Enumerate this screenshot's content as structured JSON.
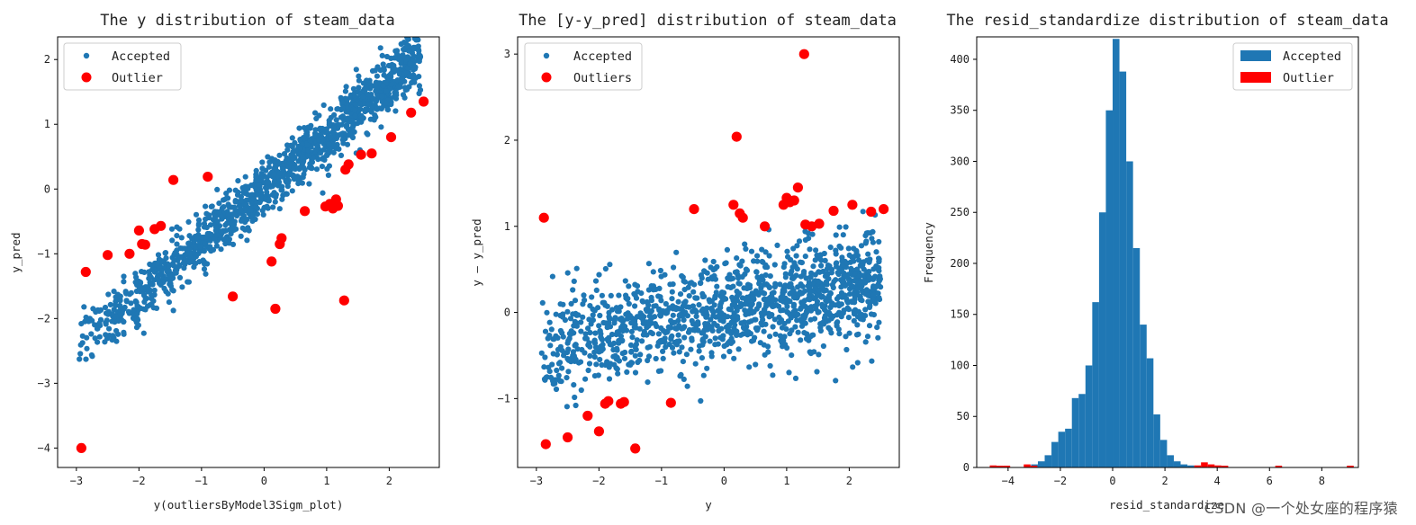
{
  "watermark": "CSDN @一个处女座的程序猿",
  "chart_data": [
    {
      "type": "scatter",
      "title": "The y distribution of steam_data",
      "xlabel": "y(outliersByModel3Sigm_plot)",
      "ylabel": "y_pred",
      "xlim": [
        -3.3,
        2.8
      ],
      "ylim": [
        -4.3,
        2.35
      ],
      "xticks": [
        -3,
        -2,
        -1,
        0,
        1,
        2
      ],
      "yticks": [
        -4,
        -3,
        -2,
        -1,
        0,
        1,
        2
      ],
      "xtick_labels": [
        "−3",
        "−2",
        "−1",
        "0",
        "1",
        "2"
      ],
      "ytick_labels": [
        "−4",
        "−3",
        "−2",
        "−1",
        "0",
        "1",
        "2"
      ],
      "legend": {
        "position": "upper-left",
        "entries": [
          "Accepted",
          "Outlier"
        ]
      },
      "accepted_cloud": {
        "count": 1300,
        "x_min": -3.0,
        "x_max": 2.5,
        "slope": 0.82,
        "intercept": 0.0,
        "noise_sd": 0.22,
        "seed": 11
      },
      "series": [
        {
          "name": "Outlier",
          "color": "#ff0000",
          "points": [
            [
              -2.92,
              -4.0
            ],
            [
              -2.85,
              -1.28
            ],
            [
              -2.5,
              -1.02
            ],
            [
              -2.15,
              -1.0
            ],
            [
              -2.0,
              -0.64
            ],
            [
              -1.95,
              -0.85
            ],
            [
              -1.9,
              -0.86
            ],
            [
              -1.75,
              -0.62
            ],
            [
              -1.65,
              -0.57
            ],
            [
              -1.45,
              0.14
            ],
            [
              -0.9,
              0.19
            ],
            [
              -0.5,
              -1.66
            ],
            [
              0.12,
              -1.12
            ],
            [
              0.18,
              -1.85
            ],
            [
              0.25,
              -0.85
            ],
            [
              0.28,
              -0.76
            ],
            [
              0.65,
              -0.34
            ],
            [
              0.98,
              -0.27
            ],
            [
              1.05,
              -0.23
            ],
            [
              1.1,
              -0.3
            ],
            [
              1.15,
              -0.16
            ],
            [
              1.18,
              -0.26
            ],
            [
              1.28,
              -1.72
            ],
            [
              1.3,
              0.3
            ],
            [
              1.35,
              0.38
            ],
            [
              1.55,
              0.53
            ],
            [
              1.72,
              0.55
            ],
            [
              2.03,
              0.8
            ],
            [
              2.35,
              1.18
            ],
            [
              2.55,
              1.35
            ]
          ]
        }
      ]
    },
    {
      "type": "scatter",
      "title": "The [y-y_pred] distribution of steam_data",
      "xlabel": "y",
      "ylabel": "y — y_pred",
      "xlim": [
        -3.3,
        2.8
      ],
      "ylim": [
        -1.8,
        3.2
      ],
      "xticks": [
        -3,
        -2,
        -1,
        0,
        1,
        2
      ],
      "yticks": [
        -1,
        0,
        1,
        2,
        3
      ],
      "xtick_labels": [
        "−3",
        "−2",
        "−1",
        "0",
        "1",
        "2"
      ],
      "ytick_labels": [
        "−1",
        "0",
        "1",
        "2",
        "3"
      ],
      "legend": {
        "position": "upper-left",
        "entries": [
          "Accepted",
          "Outliers"
        ]
      },
      "accepted_cloud": {
        "count": 1300,
        "x_min": -3.0,
        "x_max": 2.5,
        "slope": 0.13,
        "intercept": 0.0,
        "noise_sd": 0.3,
        "seed": 23
      },
      "series": [
        {
          "name": "Outliers",
          "color": "#ff0000",
          "points": [
            [
              -2.88,
              1.1
            ],
            [
              -2.85,
              -1.53
            ],
            [
              -2.5,
              -1.45
            ],
            [
              -2.18,
              -1.2
            ],
            [
              -2.0,
              -1.38
            ],
            [
              -1.9,
              -1.06
            ],
            [
              -1.85,
              -1.03
            ],
            [
              -1.65,
              -1.06
            ],
            [
              -1.6,
              -1.04
            ],
            [
              -1.42,
              -1.58
            ],
            [
              -0.85,
              -1.05
            ],
            [
              -0.48,
              1.2
            ],
            [
              0.15,
              1.25
            ],
            [
              0.2,
              2.04
            ],
            [
              0.25,
              1.15
            ],
            [
              0.3,
              1.1
            ],
            [
              0.65,
              1.0
            ],
            [
              0.95,
              1.25
            ],
            [
              1.0,
              1.33
            ],
            [
              1.05,
              1.28
            ],
            [
              1.12,
              1.3
            ],
            [
              1.18,
              1.45
            ],
            [
              1.28,
              3.0
            ],
            [
              1.3,
              1.02
            ],
            [
              1.4,
              1.0
            ],
            [
              1.52,
              1.03
            ],
            [
              1.75,
              1.18
            ],
            [
              2.05,
              1.25
            ],
            [
              2.35,
              1.17
            ],
            [
              2.55,
              1.2
            ]
          ]
        }
      ]
    },
    {
      "type": "bar",
      "title": "The resid_standardize distribution of steam_data",
      "xlabel": "resid_standardize",
      "ylabel": "Frequency",
      "xlim": [
        -5.2,
        9.4
      ],
      "ylim": [
        0,
        422
      ],
      "xticks": [
        -4,
        -2,
        0,
        2,
        4,
        6,
        8
      ],
      "yticks": [
        0,
        50,
        100,
        150,
        200,
        250,
        300,
        350,
        400
      ],
      "xtick_labels": [
        "−4",
        "−2",
        "0",
        "2",
        "4",
        "6",
        "8"
      ],
      "ytick_labels": [
        "0",
        "50",
        "100",
        "150",
        "200",
        "250",
        "300",
        "350",
        "400"
      ],
      "legend": {
        "position": "upper-right",
        "entries": [
          "Accepted",
          "Outlier"
        ]
      },
      "bin_width": 0.26,
      "series": [
        {
          "name": "Accepted",
          "color": "#1f77b4",
          "bins_start": -3.12,
          "values": [
            3,
            6,
            12,
            25,
            35,
            38,
            68,
            72,
            100,
            162,
            250,
            350,
            420,
            388,
            300,
            215,
            140,
            107,
            52,
            27,
            12,
            6,
            3,
            2
          ]
        },
        {
          "name": "Outlier",
          "color": "#ff0000",
          "bars": [
            [
              -4.7,
              2
            ],
            [
              -4.44,
              1
            ],
            [
              -4.18,
              1
            ],
            [
              -3.4,
              3
            ],
            [
              -3.14,
              1
            ],
            [
              3.12,
              2
            ],
            [
              3.38,
              5
            ],
            [
              3.64,
              3
            ],
            [
              3.9,
              2
            ],
            [
              4.16,
              1
            ],
            [
              6.22,
              1
            ],
            [
              8.96,
              1
            ]
          ]
        }
      ]
    }
  ]
}
